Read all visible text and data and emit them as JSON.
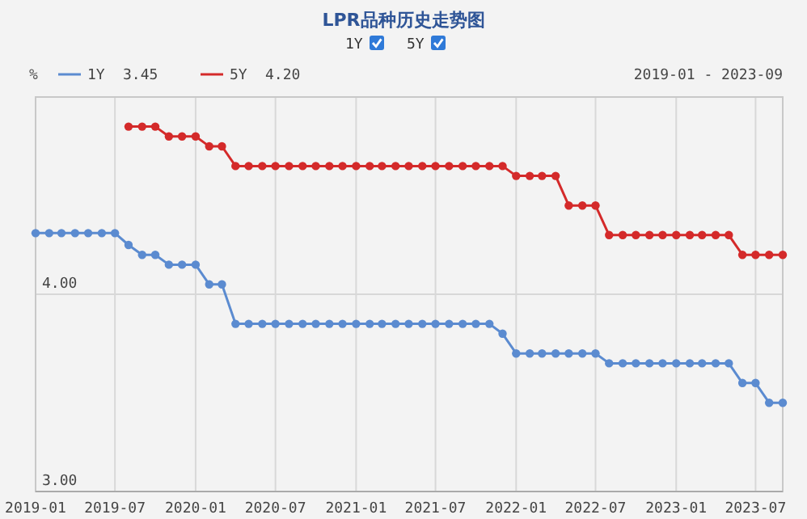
{
  "chart_data": {
    "type": "line",
    "title": "LPR品种历史走势图",
    "ylabel": "%",
    "annotations": [
      "2019-01 - 2023-09",
      "3.45",
      "4.20"
    ],
    "x": [
      "2019-01",
      "2019-02",
      "2019-03",
      "2019-04",
      "2019-05",
      "2019-06",
      "2019-07",
      "2019-08",
      "2019-09",
      "2019-10",
      "2019-11",
      "2019-12",
      "2020-01",
      "2020-02",
      "2020-03",
      "2020-04",
      "2020-05",
      "2020-06",
      "2020-07",
      "2020-08",
      "2020-09",
      "2020-10",
      "2020-11",
      "2020-12",
      "2021-01",
      "2021-02",
      "2021-03",
      "2021-04",
      "2021-05",
      "2021-06",
      "2021-07",
      "2021-08",
      "2021-09",
      "2021-10",
      "2021-11",
      "2021-12",
      "2022-01",
      "2022-02",
      "2022-03",
      "2022-04",
      "2022-05",
      "2022-06",
      "2022-07",
      "2022-08",
      "2022-09",
      "2022-10",
      "2022-11",
      "2022-12",
      "2023-01",
      "2023-02",
      "2023-03",
      "2023-04",
      "2023-05",
      "2023-06",
      "2023-07",
      "2023-08",
      "2023-09"
    ],
    "series": [
      {
        "name": "1Y",
        "color": "#5b8bd0",
        "values": [
          4.31,
          4.31,
          4.31,
          4.31,
          4.31,
          4.31,
          4.31,
          4.25,
          4.2,
          4.2,
          4.15,
          4.15,
          4.15,
          4.05,
          4.05,
          3.85,
          3.85,
          3.85,
          3.85,
          3.85,
          3.85,
          3.85,
          3.85,
          3.85,
          3.85,
          3.85,
          3.85,
          3.85,
          3.85,
          3.85,
          3.85,
          3.85,
          3.85,
          3.85,
          3.85,
          3.8,
          3.7,
          3.7,
          3.7,
          3.7,
          3.7,
          3.7,
          3.7,
          3.65,
          3.65,
          3.65,
          3.65,
          3.65,
          3.65,
          3.65,
          3.65,
          3.65,
          3.65,
          3.55,
          3.55,
          3.45,
          3.45
        ]
      },
      {
        "name": "5Y",
        "color": "#d42a2a",
        "values": [
          null,
          null,
          null,
          null,
          null,
          null,
          null,
          4.85,
          4.85,
          4.85,
          4.8,
          4.8,
          4.8,
          4.75,
          4.75,
          4.65,
          4.65,
          4.65,
          4.65,
          4.65,
          4.65,
          4.65,
          4.65,
          4.65,
          4.65,
          4.65,
          4.65,
          4.65,
          4.65,
          4.65,
          4.65,
          4.65,
          4.65,
          4.65,
          4.65,
          4.65,
          4.6,
          4.6,
          4.6,
          4.6,
          4.45,
          4.45,
          4.45,
          4.3,
          4.3,
          4.3,
          4.3,
          4.3,
          4.3,
          4.3,
          4.3,
          4.3,
          4.3,
          4.2,
          4.2,
          4.2,
          4.2
        ]
      }
    ],
    "xlim": [
      "2019-01",
      "2023-09"
    ],
    "xticks": [
      "2019-01",
      "2019-07",
      "2020-01",
      "2020-07",
      "2021-01",
      "2021-07",
      "2022-01",
      "2022-07",
      "2023-01",
      "2023-07"
    ],
    "ylim": [
      3,
      5
    ],
    "yticks": [
      {
        "value": 3,
        "label": "3.00"
      },
      {
        "value": 4,
        "label": "4.00"
      }
    ],
    "grid": true,
    "legend": "top left",
    "marker": "circle",
    "line_style": "solid"
  }
}
